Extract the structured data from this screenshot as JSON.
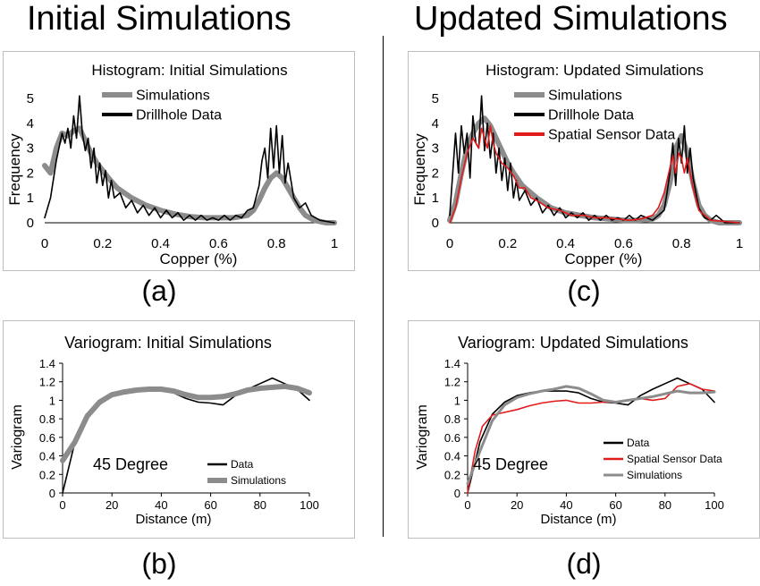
{
  "headings": {
    "left": "Initial Simulations",
    "right": "Updated Simulations"
  },
  "panel_labels": {
    "a": "(a)",
    "b": "(b)",
    "c": "(c)",
    "d": "(d)"
  },
  "colors": {
    "simulations": "#8c8c8c",
    "data": "#000000",
    "sensor": "#e21b1b"
  },
  "chart_data": [
    {
      "id": "a",
      "type": "line",
      "title": "Histogram: Initial Simulations",
      "xlabel": "Copper (%)",
      "ylabel": "Frequency",
      "xlim": [
        0,
        1
      ],
      "ylim": [
        0,
        5
      ],
      "xticks": [
        0,
        0.2,
        0.4,
        0.6,
        0.8,
        1
      ],
      "xtick_labels": [
        "0",
        "0.2",
        "0.4",
        "0.6",
        "0.8",
        "1"
      ],
      "yticks": [
        0,
        1,
        2,
        3,
        4,
        5
      ],
      "ytick_labels": [
        "0",
        "1",
        "2",
        "3",
        "4",
        "5"
      ],
      "legend_position": "top-center",
      "annotation": "",
      "series": [
        {
          "name": "Simulations",
          "style": "sim_band",
          "x": [
            0,
            0.02,
            0.04,
            0.06,
            0.08,
            0.1,
            0.12,
            0.14,
            0.16,
            0.18,
            0.2,
            0.22,
            0.25,
            0.3,
            0.35,
            0.4,
            0.45,
            0.5,
            0.55,
            0.6,
            0.65,
            0.7,
            0.72,
            0.74,
            0.76,
            0.78,
            0.8,
            0.82,
            0.84,
            0.86,
            0.88,
            0.9,
            0.93,
            0.97,
            1.0
          ],
          "y": [
            2.3,
            2.0,
            3.0,
            3.6,
            3.5,
            3.7,
            3.8,
            3.3,
            2.8,
            2.4,
            2.1,
            1.8,
            1.4,
            1.0,
            0.7,
            0.5,
            0.35,
            0.25,
            0.2,
            0.2,
            0.2,
            0.3,
            0.5,
            0.9,
            1.4,
            1.8,
            2.0,
            1.8,
            1.4,
            1.0,
            0.6,
            0.3,
            0.1,
            0.0,
            0.0
          ]
        },
        {
          "name": "Drillhole Data",
          "style": "data",
          "x": [
            0,
            0.02,
            0.04,
            0.06,
            0.07,
            0.08,
            0.09,
            0.1,
            0.11,
            0.12,
            0.13,
            0.14,
            0.15,
            0.16,
            0.17,
            0.18,
            0.19,
            0.2,
            0.21,
            0.22,
            0.23,
            0.24,
            0.26,
            0.28,
            0.3,
            0.32,
            0.34,
            0.36,
            0.38,
            0.4,
            0.42,
            0.44,
            0.46,
            0.48,
            0.5,
            0.52,
            0.54,
            0.56,
            0.58,
            0.6,
            0.62,
            0.64,
            0.66,
            0.68,
            0.7,
            0.72,
            0.74,
            0.75,
            0.76,
            0.77,
            0.78,
            0.79,
            0.8,
            0.81,
            0.82,
            0.83,
            0.84,
            0.86,
            0.88,
            0.9,
            0.92,
            0.95,
            1.0
          ],
          "y": [
            0.2,
            1.0,
            2.5,
            3.6,
            3.2,
            3.8,
            3.0,
            4.3,
            3.4,
            5.1,
            3.6,
            2.9,
            3.4,
            2.2,
            3.0,
            1.6,
            2.4,
            1.5,
            2.1,
            1.0,
            1.7,
            1.0,
            1.2,
            0.6,
            0.9,
            0.4,
            0.7,
            0.3,
            0.6,
            0.2,
            0.5,
            0.2,
            0.4,
            0.1,
            0.3,
            0.1,
            0.3,
            0.1,
            0.2,
            0.1,
            0.3,
            0.1,
            0.3,
            0.2,
            0.5,
            0.6,
            1.5,
            2.5,
            3.0,
            1.8,
            3.8,
            2.2,
            3.9,
            2.0,
            3.5,
            1.6,
            2.4,
            1.0,
            0.6,
            0.8,
            0.3,
            0.1,
            0.0
          ]
        }
      ]
    },
    {
      "id": "c",
      "type": "line",
      "title": "Histogram: Updated Simulations",
      "xlabel": "Copper (%)",
      "ylabel": "Frequency",
      "xlim": [
        0,
        1
      ],
      "ylim": [
        0,
        5
      ],
      "xticks": [
        0,
        0.2,
        0.4,
        0.6,
        0.8,
        1
      ],
      "xtick_labels": [
        "0",
        "0.2",
        "0.4",
        "0.6",
        "0.8",
        "1"
      ],
      "yticks": [
        0,
        1,
        2,
        3,
        4,
        5
      ],
      "ytick_labels": [
        "0",
        "1",
        "2",
        "3",
        "4",
        "5"
      ],
      "legend_position": "top-center",
      "annotation": "",
      "series": [
        {
          "name": "Simulations",
          "style": "sim_band",
          "x": [
            0,
            0.02,
            0.04,
            0.06,
            0.08,
            0.1,
            0.12,
            0.14,
            0.16,
            0.18,
            0.2,
            0.22,
            0.25,
            0.3,
            0.35,
            0.4,
            0.45,
            0.5,
            0.55,
            0.6,
            0.65,
            0.7,
            0.72,
            0.74,
            0.76,
            0.78,
            0.8,
            0.82,
            0.84,
            0.86,
            0.88,
            0.9,
            0.93,
            0.97,
            1.0
          ],
          "y": [
            0.1,
            0.8,
            2.0,
            3.0,
            3.6,
            4.0,
            4.2,
            3.9,
            3.4,
            2.9,
            2.4,
            2.0,
            1.5,
            1.0,
            0.6,
            0.4,
            0.3,
            0.2,
            0.15,
            0.1,
            0.1,
            0.15,
            0.3,
            0.7,
            1.6,
            3.0,
            3.5,
            2.8,
            1.6,
            0.7,
            0.3,
            0.1,
            0.0,
            0.0,
            0.0
          ]
        },
        {
          "name": "Drillhole Data",
          "style": "data",
          "x": [
            0,
            0.02,
            0.03,
            0.04,
            0.05,
            0.06,
            0.07,
            0.08,
            0.09,
            0.1,
            0.11,
            0.12,
            0.13,
            0.14,
            0.15,
            0.16,
            0.17,
            0.18,
            0.19,
            0.2,
            0.21,
            0.22,
            0.23,
            0.24,
            0.26,
            0.28,
            0.3,
            0.32,
            0.34,
            0.36,
            0.38,
            0.4,
            0.42,
            0.44,
            0.46,
            0.48,
            0.5,
            0.52,
            0.54,
            0.56,
            0.58,
            0.6,
            0.62,
            0.64,
            0.66,
            0.68,
            0.7,
            0.72,
            0.74,
            0.75,
            0.76,
            0.77,
            0.78,
            0.79,
            0.8,
            0.81,
            0.82,
            0.83,
            0.84,
            0.86,
            0.88,
            0.9,
            0.92,
            0.95,
            1.0
          ],
          "y": [
            0.3,
            3.6,
            2.0,
            3.9,
            2.8,
            3.6,
            1.8,
            4.3,
            3.2,
            3.0,
            5.1,
            2.9,
            4.0,
            2.6,
            3.6,
            2.0,
            3.0,
            1.7,
            2.6,
            1.3,
            2.4,
            1.0,
            1.7,
            0.9,
            1.3,
            0.7,
            1.0,
            0.4,
            0.7,
            0.3,
            0.6,
            0.2,
            0.4,
            0.2,
            0.4,
            0.1,
            0.3,
            0.1,
            0.3,
            0.1,
            0.2,
            0.1,
            0.3,
            0.1,
            0.3,
            0.2,
            0.1,
            0.3,
            0.5,
            1.2,
            2.0,
            3.2,
            1.5,
            3.4,
            2.4,
            3.9,
            2.0,
            3.0,
            1.8,
            0.6,
            0.2,
            0.1,
            0.3,
            0.0,
            0.0
          ]
        },
        {
          "name": "Spatial Sensor Data",
          "style": "sensor",
          "x": [
            0,
            0.02,
            0.04,
            0.06,
            0.08,
            0.1,
            0.11,
            0.12,
            0.13,
            0.14,
            0.15,
            0.16,
            0.18,
            0.2,
            0.22,
            0.24,
            0.26,
            0.28,
            0.3,
            0.34,
            0.38,
            0.42,
            0.46,
            0.5,
            0.54,
            0.58,
            0.62,
            0.66,
            0.7,
            0.72,
            0.74,
            0.76,
            0.77,
            0.78,
            0.79,
            0.8,
            0.81,
            0.82,
            0.84,
            0.86,
            0.9,
            0.95,
            1.0
          ],
          "y": [
            0.0,
            0.6,
            1.8,
            2.8,
            3.4,
            3.0,
            3.8,
            3.4,
            3.0,
            3.9,
            3.2,
            2.8,
            2.4,
            2.2,
            1.9,
            1.4,
            1.4,
            1.0,
            0.9,
            0.6,
            0.5,
            0.3,
            0.3,
            0.2,
            0.2,
            0.15,
            0.1,
            0.15,
            0.3,
            0.6,
            1.2,
            2.2,
            2.7,
            2.0,
            2.8,
            2.6,
            2.0,
            2.6,
            1.4,
            0.5,
            0.1,
            0.05,
            0.0
          ]
        }
      ]
    },
    {
      "id": "b",
      "type": "line",
      "title": "Variogram: Initial Simulations",
      "xlabel": "Distance (m)",
      "ylabel": "Variogram",
      "xlim": [
        0,
        100
      ],
      "ylim": [
        0,
        1.4
      ],
      "xticks": [
        0,
        20,
        40,
        60,
        80,
        100
      ],
      "xtick_labels": [
        "0",
        "20",
        "40",
        "60",
        "80",
        "100"
      ],
      "yticks": [
        0,
        0.2,
        0.4,
        0.6,
        0.8,
        1,
        1.2,
        1.4
      ],
      "ytick_labels": [
        "0",
        "0.2",
        "0.4",
        "0.6",
        "0.8",
        "1",
        "1.2",
        "1.4"
      ],
      "legend_position": "bottom-center",
      "annotation": "45 Degree",
      "series": [
        {
          "name": "Data",
          "style": "data",
          "x": [
            0,
            5,
            10,
            15,
            20,
            25,
            30,
            35,
            40,
            45,
            50,
            55,
            60,
            65,
            70,
            75,
            80,
            85,
            90,
            95,
            100
          ],
          "y": [
            0.0,
            0.55,
            0.85,
            0.98,
            1.05,
            1.08,
            1.1,
            1.1,
            1.1,
            1.08,
            1.02,
            0.98,
            0.97,
            0.95,
            1.05,
            1.12,
            1.18,
            1.24,
            1.18,
            1.12,
            1.0
          ]
        },
        {
          "name": "Simulations",
          "style": "sim_band",
          "x": [
            0,
            5,
            10,
            15,
            20,
            25,
            30,
            35,
            40,
            45,
            50,
            55,
            60,
            65,
            70,
            75,
            80,
            85,
            90,
            95,
            100
          ],
          "y": [
            0.35,
            0.55,
            0.83,
            0.98,
            1.06,
            1.09,
            1.11,
            1.12,
            1.12,
            1.1,
            1.06,
            1.03,
            1.03,
            1.04,
            1.07,
            1.11,
            1.13,
            1.14,
            1.15,
            1.13,
            1.08
          ]
        }
      ]
    },
    {
      "id": "d",
      "type": "line",
      "title": "Variogram: Updated Simulations",
      "xlabel": "Distance (m)",
      "ylabel": "Variogram",
      "xlim": [
        0,
        100
      ],
      "ylim": [
        0,
        1.4
      ],
      "xticks": [
        0,
        20,
        40,
        60,
        80,
        100
      ],
      "xtick_labels": [
        "0",
        "20",
        "40",
        "60",
        "80",
        "100"
      ],
      "yticks": [
        0,
        0.2,
        0.4,
        0.6,
        0.8,
        1,
        1.2,
        1.4
      ],
      "ytick_labels": [
        "0",
        "0.2",
        "0.4",
        "0.6",
        "0.8",
        "1",
        "1.2",
        "1.4"
      ],
      "legend_position": "bottom-center",
      "annotation": "45 Degree",
      "series": [
        {
          "name": "Data",
          "style": "data",
          "x": [
            0,
            5,
            10,
            15,
            20,
            25,
            30,
            35,
            40,
            45,
            50,
            55,
            60,
            65,
            70,
            75,
            80,
            85,
            90,
            95,
            100
          ],
          "y": [
            0.0,
            0.55,
            0.85,
            0.98,
            1.05,
            1.08,
            1.1,
            1.1,
            1.1,
            1.08,
            1.02,
            0.98,
            0.97,
            0.95,
            1.05,
            1.12,
            1.18,
            1.24,
            1.18,
            1.12,
            0.98
          ]
        },
        {
          "name": "Spatial Sensor Data",
          "style": "sensor",
          "x": [
            0,
            3,
            6,
            10,
            15,
            20,
            25,
            30,
            35,
            40,
            45,
            50,
            55,
            60,
            65,
            70,
            75,
            80,
            85,
            90,
            95,
            100
          ],
          "y": [
            0.0,
            0.45,
            0.72,
            0.84,
            0.87,
            0.9,
            0.94,
            0.97,
            0.99,
            1.0,
            0.97,
            0.97,
            0.98,
            0.98,
            1.0,
            1.02,
            1.0,
            1.02,
            1.15,
            1.18,
            1.12,
            1.1
          ]
        },
        {
          "name": "Simulations",
          "style": "sim",
          "x": [
            0,
            5,
            10,
            15,
            20,
            25,
            30,
            35,
            40,
            45,
            50,
            55,
            60,
            65,
            70,
            75,
            80,
            85,
            90,
            95,
            100
          ],
          "y": [
            0.1,
            0.45,
            0.78,
            0.95,
            1.03,
            1.07,
            1.1,
            1.12,
            1.15,
            1.13,
            1.07,
            1.0,
            0.98,
            1.0,
            1.02,
            1.04,
            1.07,
            1.1,
            1.08,
            1.08,
            1.09
          ]
        }
      ]
    }
  ]
}
